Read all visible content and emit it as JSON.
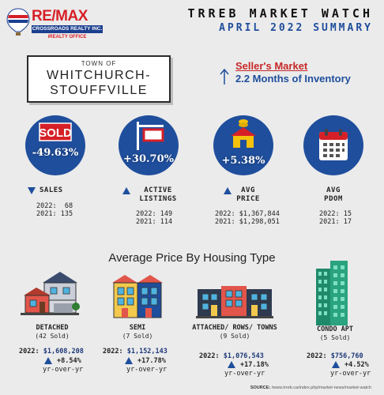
{
  "header": {
    "brand": "RE/MAX",
    "brand_bar": "CROSSROADS REALTY INC.",
    "brand_sub": "iREALTY OFFICE",
    "title": "TRREB MARKET WATCH",
    "subtitle": "APRIL 2022 SUMMARY"
  },
  "town": {
    "label": "TOWN OF",
    "name_line1": "WHITCHURCH-",
    "name_line2": "STOUFFVILLE"
  },
  "market": {
    "type": "Seller's Market",
    "inventory": "2.2 Months of Inventory"
  },
  "stats": [
    {
      "icon": "sold-sign-icon",
      "change": "-49.63%",
      "direction": "down",
      "label_line1": "SALES",
      "label_line2": "",
      "row_2022": "2022:  68",
      "row_2021": "2021: 135"
    },
    {
      "icon": "for-sale-sign-icon",
      "change": "+30.70%",
      "direction": "up",
      "label_line1": "ACTIVE",
      "label_line2": "LISTINGS",
      "row_2022": "2022: 149",
      "row_2021": "2021: 114"
    },
    {
      "icon": "house-coins-icon",
      "change": "+5.38%",
      "direction": "up",
      "label_line1": "AVG",
      "label_line2": "PRICE",
      "row_2022": "2022: $1,367,844",
      "row_2021": "2021: $1,298,051"
    },
    {
      "icon": "calendar-icon",
      "change": "",
      "direction": "none",
      "label_line1": "AVG",
      "label_line2": "PDOM",
      "row_2022": "2022: 15",
      "row_2021": "2021: 17"
    }
  ],
  "section_title": "Average Price By Housing Type",
  "housing": [
    {
      "icon": "detached-house-icon",
      "type": "DETACHED",
      "sold": "(42 Sold)",
      "price_prefix": "2022: ",
      "price": "$1,608,208",
      "change": "+8.54%",
      "yoy": "yr-over-yr"
    },
    {
      "icon": "semi-house-icon",
      "type": "SEMI",
      "sold": "(7 Sold)",
      "price_prefix": "2022: ",
      "price": "$1,152,143",
      "change": "+17.78%",
      "yoy": "yr-over-yr"
    },
    {
      "icon": "townhouse-icon",
      "type": "ATTACHED/ ROWS/ TOWNS",
      "sold": "(9 Sold)",
      "price_prefix": "2022: ",
      "price": "$1,076,543",
      "change": "+17.18%",
      "yoy": "yr-over-yr"
    },
    {
      "icon": "condo-tower-icon",
      "type": "CONDO APT",
      "sold": "(5 Sold)",
      "price_prefix": "2022: ",
      "price": "$756,760",
      "change": "+4.52%",
      "yoy": "yr-over-yr"
    }
  ],
  "source": {
    "label": "SOURCE:",
    "url": "/www.trreb.ca/index.php/market-news/market-watch"
  },
  "colors": {
    "primary_blue": "#1f4e9c",
    "brand_red": "#d62027",
    "seller_red": "#c62828",
    "background": "#ebebeb"
  }
}
